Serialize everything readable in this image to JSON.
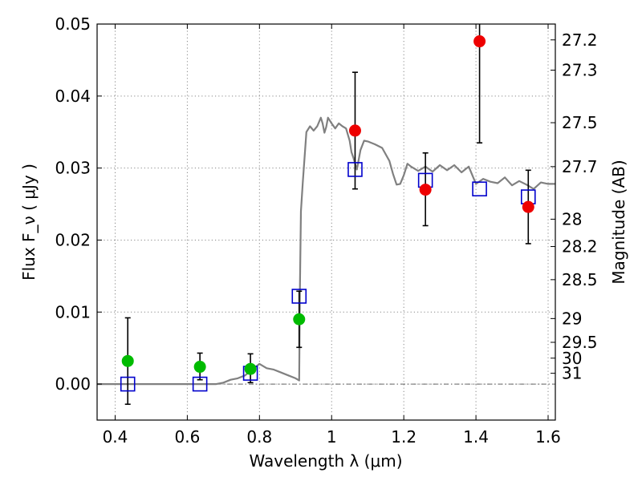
{
  "chart_data": {
    "type": "scatter",
    "xlabel": "Wavelength  λ (μm)",
    "ylabel": "Flux  F_ν  ( μJy )",
    "ylabel_right": "Magnitude (AB)",
    "xlim": [
      0.35,
      1.62
    ],
    "ylim": [
      -0.005,
      0.05
    ],
    "grid": true,
    "x_ticks": [
      0.4,
      0.6,
      0.8,
      1.0,
      1.2,
      1.4,
      1.6
    ],
    "x_tick_labels": [
      "0.4",
      "0.6",
      "0.8",
      "1",
      "1.2",
      "1.4",
      "1.6"
    ],
    "y_ticks": [
      0.0,
      0.01,
      0.02,
      0.03,
      0.04,
      0.05
    ],
    "y_tick_labels": [
      "0.00",
      "0.01",
      "0.02",
      "0.03",
      "0.04",
      "0.05"
    ],
    "right_ticks": [
      {
        "label": "27.2",
        "flux": 0.0478
      },
      {
        "label": "27.3",
        "flux": 0.0436
      },
      {
        "label": "27.5",
        "flux": 0.0363
      },
      {
        "label": "27.7",
        "flux": 0.0302
      },
      {
        "label": "28",
        "flux": 0.0229
      },
      {
        "label": "28.2",
        "flux": 0.0191
      },
      {
        "label": "28.5",
        "flux": 0.0145
      },
      {
        "label": "29",
        "flux": 0.0091
      },
      {
        "label": "29.5",
        "flux": 0.0058
      },
      {
        "label": "30",
        "flux": 0.0036
      },
      {
        "label": "31",
        "flux": 0.0015
      }
    ],
    "series": [
      {
        "color": "#00bb00",
        "marker": "circle",
        "points": [
          {
            "x": 0.435,
            "y": 0.0032,
            "ylo": -0.0028,
            "yhi": 0.0092
          },
          {
            "x": 0.635,
            "y": 0.0024,
            "ylo": 0.0006,
            "yhi": 0.0043
          },
          {
            "x": 0.775,
            "y": 0.0021,
            "ylo": 0.0002,
            "yhi": 0.0042
          },
          {
            "x": 0.91,
            "y": 0.009,
            "ylo": 0.0051,
            "yhi": 0.0129
          }
        ]
      },
      {
        "color": "#ee0000",
        "marker": "circle",
        "points": [
          {
            "x": 1.065,
            "y": 0.0352,
            "ylo": 0.0271,
            "yhi": 0.0433
          },
          {
            "x": 1.26,
            "y": 0.027,
            "ylo": 0.022,
            "yhi": 0.0321
          },
          {
            "x": 1.41,
            "y": 0.0476,
            "ylo": 0.0335,
            "yhi": 0.0505
          },
          {
            "x": 1.545,
            "y": 0.0246,
            "ylo": 0.0195,
            "yhi": 0.0297
          }
        ]
      },
      {
        "color": "#0000cc",
        "marker": "open-square",
        "points": [
          {
            "x": 0.435,
            "y": 0.0
          },
          {
            "x": 0.635,
            "y": 0.0
          },
          {
            "x": 0.775,
            "y": 0.0015
          },
          {
            "x": 0.91,
            "y": 0.0122
          },
          {
            "x": 1.065,
            "y": 0.0298
          },
          {
            "x": 1.26,
            "y": 0.0283
          },
          {
            "x": 1.41,
            "y": 0.0271
          },
          {
            "x": 1.545,
            "y": 0.026
          }
        ]
      },
      {
        "color": "#808080",
        "marker": "line",
        "points": [
          [
            0.35,
            0.0
          ],
          [
            0.68,
            0.0
          ],
          [
            0.7,
            0.0002
          ],
          [
            0.72,
            0.0006
          ],
          [
            0.74,
            0.0008
          ],
          [
            0.76,
            0.0012
          ],
          [
            0.78,
            0.002
          ],
          [
            0.8,
            0.0028
          ],
          [
            0.82,
            0.0022
          ],
          [
            0.84,
            0.002
          ],
          [
            0.86,
            0.0016
          ],
          [
            0.88,
            0.0012
          ],
          [
            0.9,
            0.0008
          ],
          [
            0.91,
            0.0005
          ],
          [
            0.912,
            0.013
          ],
          [
            0.915,
            0.024
          ],
          [
            0.92,
            0.028
          ],
          [
            0.93,
            0.035
          ],
          [
            0.94,
            0.0358
          ],
          [
            0.95,
            0.0352
          ],
          [
            0.96,
            0.0358
          ],
          [
            0.97,
            0.037
          ],
          [
            0.975,
            0.0362
          ],
          [
            0.98,
            0.0349
          ],
          [
            0.985,
            0.0357
          ],
          [
            0.99,
            0.037
          ],
          [
            1.0,
            0.0362
          ],
          [
            1.01,
            0.0355
          ],
          [
            1.02,
            0.0362
          ],
          [
            1.03,
            0.0358
          ],
          [
            1.04,
            0.0355
          ],
          [
            1.05,
            0.0338
          ],
          [
            1.055,
            0.0322
          ],
          [
            1.06,
            0.0315
          ],
          [
            1.07,
            0.0298
          ],
          [
            1.08,
            0.0325
          ],
          [
            1.09,
            0.0338
          ],
          [
            1.1,
            0.0337
          ],
          [
            1.12,
            0.0333
          ],
          [
            1.14,
            0.0328
          ],
          [
            1.16,
            0.031
          ],
          [
            1.17,
            0.0292
          ],
          [
            1.18,
            0.0277
          ],
          [
            1.19,
            0.0278
          ],
          [
            1.2,
            0.029
          ],
          [
            1.21,
            0.0306
          ],
          [
            1.22,
            0.0302
          ],
          [
            1.24,
            0.0296
          ],
          [
            1.26,
            0.0302
          ],
          [
            1.28,
            0.0295
          ],
          [
            1.3,
            0.0304
          ],
          [
            1.32,
            0.0297
          ],
          [
            1.34,
            0.0304
          ],
          [
            1.36,
            0.0294
          ],
          [
            1.38,
            0.0302
          ],
          [
            1.4,
            0.0278
          ],
          [
            1.42,
            0.0285
          ],
          [
            1.44,
            0.0281
          ],
          [
            1.46,
            0.0279
          ],
          [
            1.48,
            0.0287
          ],
          [
            1.5,
            0.0276
          ],
          [
            1.52,
            0.0282
          ],
          [
            1.54,
            0.0277
          ],
          [
            1.56,
            0.0271
          ],
          [
            1.58,
            0.028
          ],
          [
            1.6,
            0.0278
          ],
          [
            1.62,
            0.0278
          ]
        ]
      }
    ]
  }
}
